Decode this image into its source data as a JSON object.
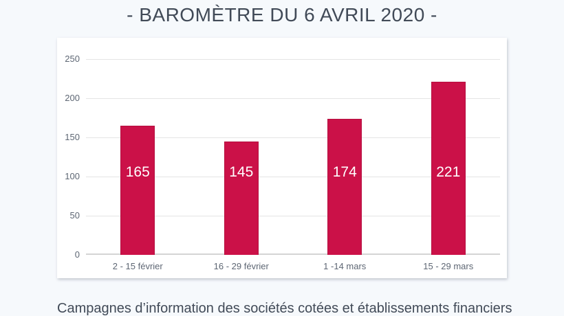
{
  "page": {
    "title": "- BAROMÈTRE DU 6 AVRIL 2020 -",
    "caption": "Campagnes d’information des sociétés cotées et établissements financiers"
  },
  "colors": {
    "background": "#F6F9FC",
    "card": "#FFFFFF",
    "bar": "#CB1148",
    "gridline": "#E4E4E4",
    "axis_line": "#D4D4D4",
    "axis_text": "#5D6673",
    "title_text": "#414A57",
    "value_label_text": "#FFFFFF"
  },
  "chart_data": {
    "type": "bar",
    "categories": [
      "2 - 15 février",
      "16 - 29 février",
      "1 -14 mars",
      "15 - 29 mars"
    ],
    "values": [
      165,
      145,
      174,
      221
    ],
    "title": "",
    "xlabel": "",
    "ylabel": "",
    "ylim": [
      0,
      250
    ],
    "yticks": [
      0,
      50,
      100,
      150,
      200,
      250
    ],
    "grid": true,
    "legend": false,
    "bar_color": "#CB1148",
    "value_labels_shown": true
  }
}
